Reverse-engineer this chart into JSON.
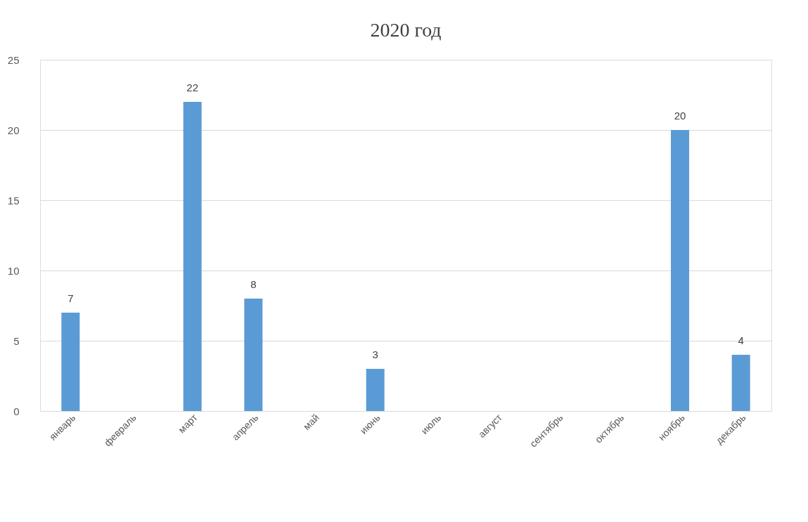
{
  "chart_data": {
    "type": "bar",
    "title": "2020 год",
    "categories": [
      "январь",
      "февраль",
      "март",
      "апрель",
      "май",
      "июнь",
      "июль",
      "август",
      "сентябрь",
      "октябрь",
      "ноябрь",
      "декабрь"
    ],
    "values": [
      7,
      null,
      22,
      8,
      null,
      3,
      null,
      null,
      null,
      null,
      20,
      4
    ],
    "color": "#5b9bd5",
    "ylim": [
      0,
      25
    ],
    "yticks": [
      0,
      5,
      10,
      15,
      20,
      25
    ],
    "grid": "y",
    "data_labels": true
  }
}
